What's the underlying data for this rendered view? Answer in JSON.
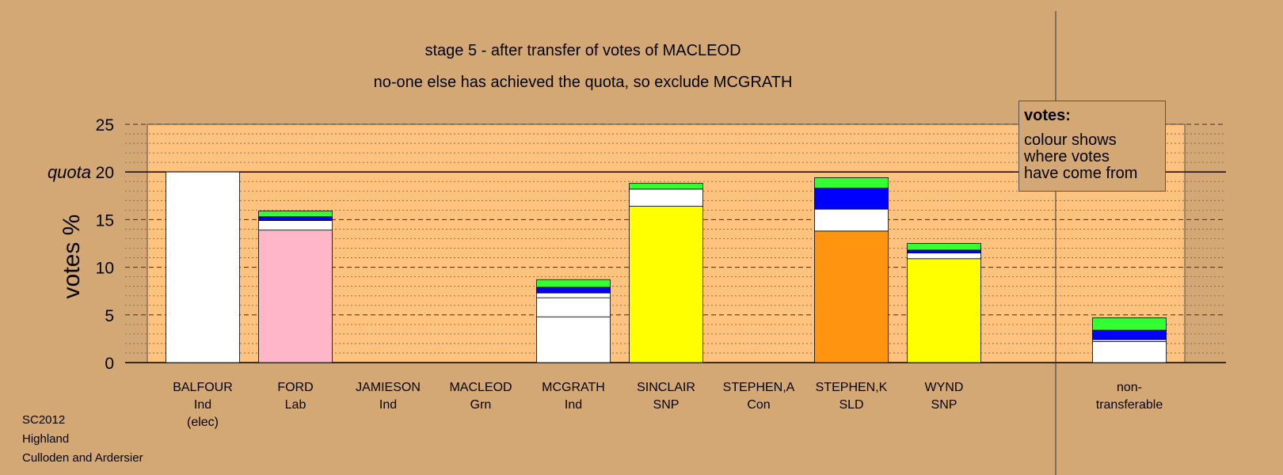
{
  "chart_data": {
    "type": "bar",
    "title": "stage 5 - after transfer of votes of MACLEOD",
    "subtitle": "no-one else has achieved the quota, so exclude MCGRATH",
    "ylabel": "votes %",
    "ylim": [
      0,
      25
    ],
    "yticks": [
      "0",
      "5",
      "10",
      "15",
      "20",
      "25"
    ],
    "quota": {
      "label": "quota",
      "value": 20
    },
    "grid": true,
    "legend": {
      "title": "votes:",
      "text": "colour shows\nwhere votes\nhave come from",
      "placement": "top-right"
    },
    "categories": [
      {
        "name": "BALFOUR",
        "party": "Ind",
        "note": "(elec)"
      },
      {
        "name": "FORD",
        "party": "Lab",
        "note": ""
      },
      {
        "name": "JAMIESON",
        "party": "Ind",
        "note": ""
      },
      {
        "name": "MACLEOD",
        "party": "Grn",
        "note": ""
      },
      {
        "name": "MCGRATH",
        "party": "Ind",
        "note": ""
      },
      {
        "name": "SINCLAIR",
        "party": "SNP",
        "note": ""
      },
      {
        "name": "STEPHEN,A",
        "party": "Con",
        "note": ""
      },
      {
        "name": "STEPHEN,K",
        "party": "SLD",
        "note": ""
      },
      {
        "name": "WYND",
        "party": "SNP",
        "note": ""
      },
      {
        "name": "non-",
        "party": "transferable",
        "note": ""
      }
    ],
    "stacks": [
      [
        {
          "value": 20.0,
          "color": "#FFFFFF"
        }
      ],
      [
        {
          "value": 13.9,
          "color": "#FFB6C8"
        },
        {
          "value": 1.0,
          "color": "#FFFFFF"
        },
        {
          "value": 0.4,
          "color": "#0000FF"
        },
        {
          "value": 0.6,
          "color": "#33FF33"
        }
      ],
      [],
      [],
      [
        {
          "value": 4.8,
          "color": "#FFFFFF"
        },
        {
          "value": 2.0,
          "color": "#FFFFFF"
        },
        {
          "value": 0.5,
          "color": "#FFFFFF"
        },
        {
          "value": 0.6,
          "color": "#0000FF"
        },
        {
          "value": 0.8,
          "color": "#33FF33"
        }
      ],
      [
        {
          "value": 16.4,
          "color": "#FFFF00"
        },
        {
          "value": 1.8,
          "color": "#FFFFFF"
        },
        {
          "value": 0.6,
          "color": "#33FF33"
        }
      ],
      [],
      [
        {
          "value": 13.8,
          "color": "#FF9410"
        },
        {
          "value": 2.3,
          "color": "#FFFFFF"
        },
        {
          "value": 2.2,
          "color": "#0000FF"
        },
        {
          "value": 1.1,
          "color": "#33FF33"
        }
      ],
      [
        {
          "value": 10.9,
          "color": "#FFFF00"
        },
        {
          "value": 0.6,
          "color": "#FFFFFF"
        },
        {
          "value": 0.3,
          "color": "#0000FF"
        },
        {
          "value": 0.7,
          "color": "#33FF33"
        }
      ],
      [
        {
          "value": 2.2,
          "color": "#FFFFFF"
        },
        {
          "value": 0.2,
          "color": "#FFFFFF"
        },
        {
          "value": 1.0,
          "color": "#0000FF"
        },
        {
          "value": 1.3,
          "color": "#33FF33"
        }
      ]
    ]
  },
  "footer": {
    "election": "SC2012",
    "council": "Highland",
    "ward": "Culloden and Ardersier"
  }
}
